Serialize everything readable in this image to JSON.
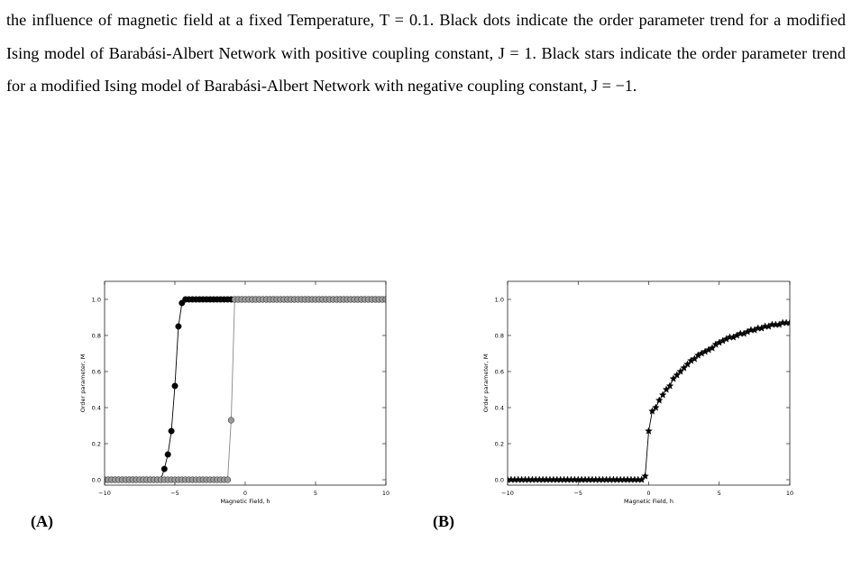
{
  "paragraph": "the influence of magnetic field at a fixed Temperature, T = 0.1. Black dots indicate the order parameter trend for a modified Ising model of Barabási-Albert Network with positive coupling constant, J = 1. Black stars indicate the order parameter trend for a modified Ising model of Barabási-Albert Network with negative coupling constant, J = −1.",
  "panel_labels": [
    "(A)",
    "(B)"
  ],
  "chart_data": [
    {
      "type": "line",
      "xlabel": "Magnetic Field, h",
      "ylabel": "Order parameter, M",
      "xlim": [
        -10,
        10
      ],
      "ylim": [
        -0.03,
        1.1
      ],
      "xticks": [
        {
          "value": -10,
          "label": "−10"
        },
        {
          "value": -5,
          "label": "−5"
        },
        0,
        5,
        10
      ],
      "yticks": [
        {
          "value": 0,
          "label": "0.0"
        },
        {
          "value": 0.2,
          "label": "0.2"
        },
        {
          "value": 0.4,
          "label": "0.4"
        },
        {
          "value": 0.6,
          "label": "0.6"
        },
        {
          "value": 0.8,
          "label": "0.8"
        },
        {
          "value": 1,
          "label": "1.0"
        }
      ],
      "x": [
        -10,
        -9.75,
        -9.5,
        -9.25,
        -9,
        -8.75,
        -8.5,
        -8.25,
        -8,
        -7.75,
        -7.5,
        -7.25,
        -7,
        -6.75,
        -6.5,
        -6.25,
        -6,
        -5.75,
        -5.5,
        -5.25,
        -5,
        -4.75,
        -4.5,
        -4.25,
        -4,
        -3.75,
        -3.5,
        -3.25,
        -3,
        -2.75,
        -2.5,
        -2.25,
        -2,
        -1.75,
        -1.5,
        -1.25,
        -1,
        -0.75,
        -0.5,
        -0.25,
        0,
        0.25,
        0.5,
        0.75,
        1,
        1.25,
        1.5,
        1.75,
        2,
        2.25,
        2.5,
        2.75,
        3,
        3.25,
        3.5,
        3.75,
        4,
        4.25,
        4.5,
        4.75,
        5,
        5.25,
        5.5,
        5.75,
        6,
        6.25,
        6.5,
        6.75,
        7,
        7.25,
        7.5,
        7.75,
        8,
        8.25,
        8.5,
        8.75,
        9,
        9.25,
        9.5,
        9.75,
        10
      ],
      "series": [
        {
          "color": "#000000",
          "line_color": "#000000",
          "marker": "circle",
          "values": [
            0,
            0,
            0,
            0,
            0,
            0,
            0,
            0,
            0,
            0,
            0,
            0,
            0,
            0,
            0,
            0,
            0,
            0.06,
            0.14,
            0.27,
            0.52,
            0.85,
            0.98,
            1,
            1,
            1,
            1,
            1,
            1,
            1,
            1,
            1,
            1,
            1,
            1,
            1,
            1,
            1,
            1,
            1,
            1,
            1,
            1,
            1,
            1,
            1,
            1,
            1,
            1,
            1,
            1,
            1,
            1,
            1,
            1,
            1,
            1,
            1,
            1,
            1,
            1,
            1,
            1,
            1,
            1,
            1,
            1,
            1,
            1,
            1,
            1,
            1,
            1,
            1,
            1,
            1,
            1,
            1,
            1,
            1,
            1
          ]
        },
        {
          "color": "#9a9a9a",
          "line_color": "#888888",
          "marker": "circle",
          "values": [
            0,
            0,
            0,
            0,
            0,
            0,
            0,
            0,
            0,
            0,
            0,
            0,
            0,
            0,
            0,
            0,
            0,
            0,
            0,
            0,
            0,
            0,
            0,
            0,
            0,
            0,
            0,
            0,
            0,
            0,
            0,
            0,
            0,
            0,
            0,
            0,
            0.33,
            1,
            1,
            1,
            1,
            1,
            1,
            1,
            1,
            1,
            1,
            1,
            1,
            1,
            1,
            1,
            1,
            1,
            1,
            1,
            1,
            1,
            1,
            1,
            1,
            1,
            1,
            1,
            1,
            1,
            1,
            1,
            1,
            1,
            1,
            1,
            1,
            1,
            1,
            1,
            1,
            1,
            1,
            1,
            1
          ]
        }
      ]
    },
    {
      "type": "line",
      "xlabel": "Magnetic Field, h",
      "ylabel": "Order parameter, M",
      "xlim": [
        -10,
        10
      ],
      "ylim": [
        -0.03,
        1.1
      ],
      "xticks": [
        {
          "value": -10,
          "label": "−10"
        },
        {
          "value": -5,
          "label": "−5"
        },
        0,
        5,
        10
      ],
      "yticks": [
        {
          "value": 0,
          "label": "0.0"
        },
        {
          "value": 0.2,
          "label": "0.2"
        },
        {
          "value": 0.4,
          "label": "0.4"
        },
        {
          "value": 0.6,
          "label": "0.6"
        },
        {
          "value": 0.8,
          "label": "0.8"
        },
        {
          "value": 1,
          "label": "1.0"
        }
      ],
      "x": [
        -10,
        -9.75,
        -9.5,
        -9.25,
        -9,
        -8.75,
        -8.5,
        -8.25,
        -8,
        -7.75,
        -7.5,
        -7.25,
        -7,
        -6.75,
        -6.5,
        -6.25,
        -6,
        -5.75,
        -5.5,
        -5.25,
        -5,
        -4.75,
        -4.5,
        -4.25,
        -4,
        -3.75,
        -3.5,
        -3.25,
        -3,
        -2.75,
        -2.5,
        -2.25,
        -2,
        -1.75,
        -1.5,
        -1.25,
        -1,
        -0.75,
        -0.5,
        -0.25,
        0,
        0.25,
        0.5,
        0.75,
        1,
        1.25,
        1.5,
        1.75,
        2,
        2.25,
        2.5,
        2.75,
        3,
        3.25,
        3.5,
        3.75,
        4,
        4.25,
        4.5,
        4.75,
        5,
        5.25,
        5.5,
        5.75,
        6,
        6.25,
        6.5,
        6.75,
        7,
        7.25,
        7.5,
        7.75,
        8,
        8.25,
        8.5,
        8.75,
        9,
        9.25,
        9.5,
        9.75,
        10
      ],
      "series": [
        {
          "color": "#000000",
          "line_color": "#000000",
          "marker": "star",
          "values": [
            0,
            0,
            0,
            0,
            0,
            0,
            0,
            0,
            0,
            0,
            0,
            0,
            0,
            0,
            0,
            0,
            0,
            0,
            0,
            0,
            0,
            0,
            0,
            0,
            0,
            0,
            0,
            0,
            0,
            0,
            0,
            0,
            0,
            0,
            0,
            0,
            0,
            0,
            0,
            0.02,
            0.27,
            0.38,
            0.4,
            0.44,
            0.47,
            0.5,
            0.52,
            0.56,
            0.58,
            0.6,
            0.62,
            0.64,
            0.66,
            0.67,
            0.69,
            0.7,
            0.71,
            0.72,
            0.73,
            0.75,
            0.76,
            0.77,
            0.78,
            0.79,
            0.79,
            0.8,
            0.81,
            0.81,
            0.82,
            0.83,
            0.83,
            0.84,
            0.84,
            0.85,
            0.85,
            0.86,
            0.86,
            0.86,
            0.87,
            0.87,
            0.87
          ]
        }
      ]
    }
  ]
}
